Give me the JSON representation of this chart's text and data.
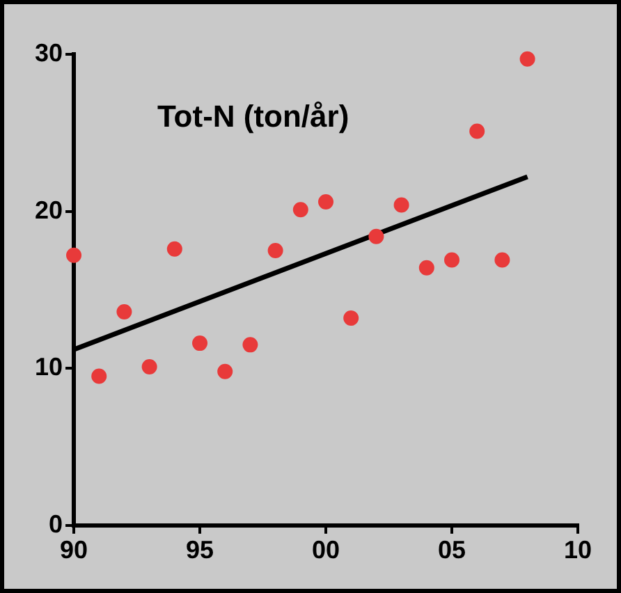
{
  "chart_data": {
    "type": "scatter",
    "title": "Tot-N (ton/år)",
    "x": [
      1990,
      1991,
      1992,
      1993,
      1994,
      1995,
      1996,
      1997,
      1998,
      1999,
      2000,
      2001,
      2002,
      2003,
      2004,
      2005,
      2006,
      2007,
      2008
    ],
    "series": [
      {
        "color": "#e83a3a",
        "marker": "circle",
        "values": [
          17.2,
          9.5,
          13.6,
          10.1,
          17.6,
          11.6,
          9.8,
          11.5,
          17.5,
          20.1,
          20.6,
          13.2,
          18.4,
          20.4,
          16.4,
          16.9,
          25.1,
          16.9,
          29.7
        ]
      },
      {
        "type": "line",
        "color": "#000000",
        "x": [
          1990,
          2008
        ],
        "values": [
          11.2,
          22.2
        ]
      }
    ],
    "xlim": [
      1990,
      2010
    ],
    "xticks": [
      {
        "value": 1990,
        "label": "90"
      },
      {
        "value": 1995,
        "label": "95"
      },
      {
        "value": 2000,
        "label": "00"
      },
      {
        "value": 2005,
        "label": "05"
      },
      {
        "value": 2010,
        "label": "10"
      }
    ],
    "ylim": [
      0,
      30
    ],
    "yticks": [
      0,
      10,
      20,
      30
    ],
    "grid": false
  }
}
